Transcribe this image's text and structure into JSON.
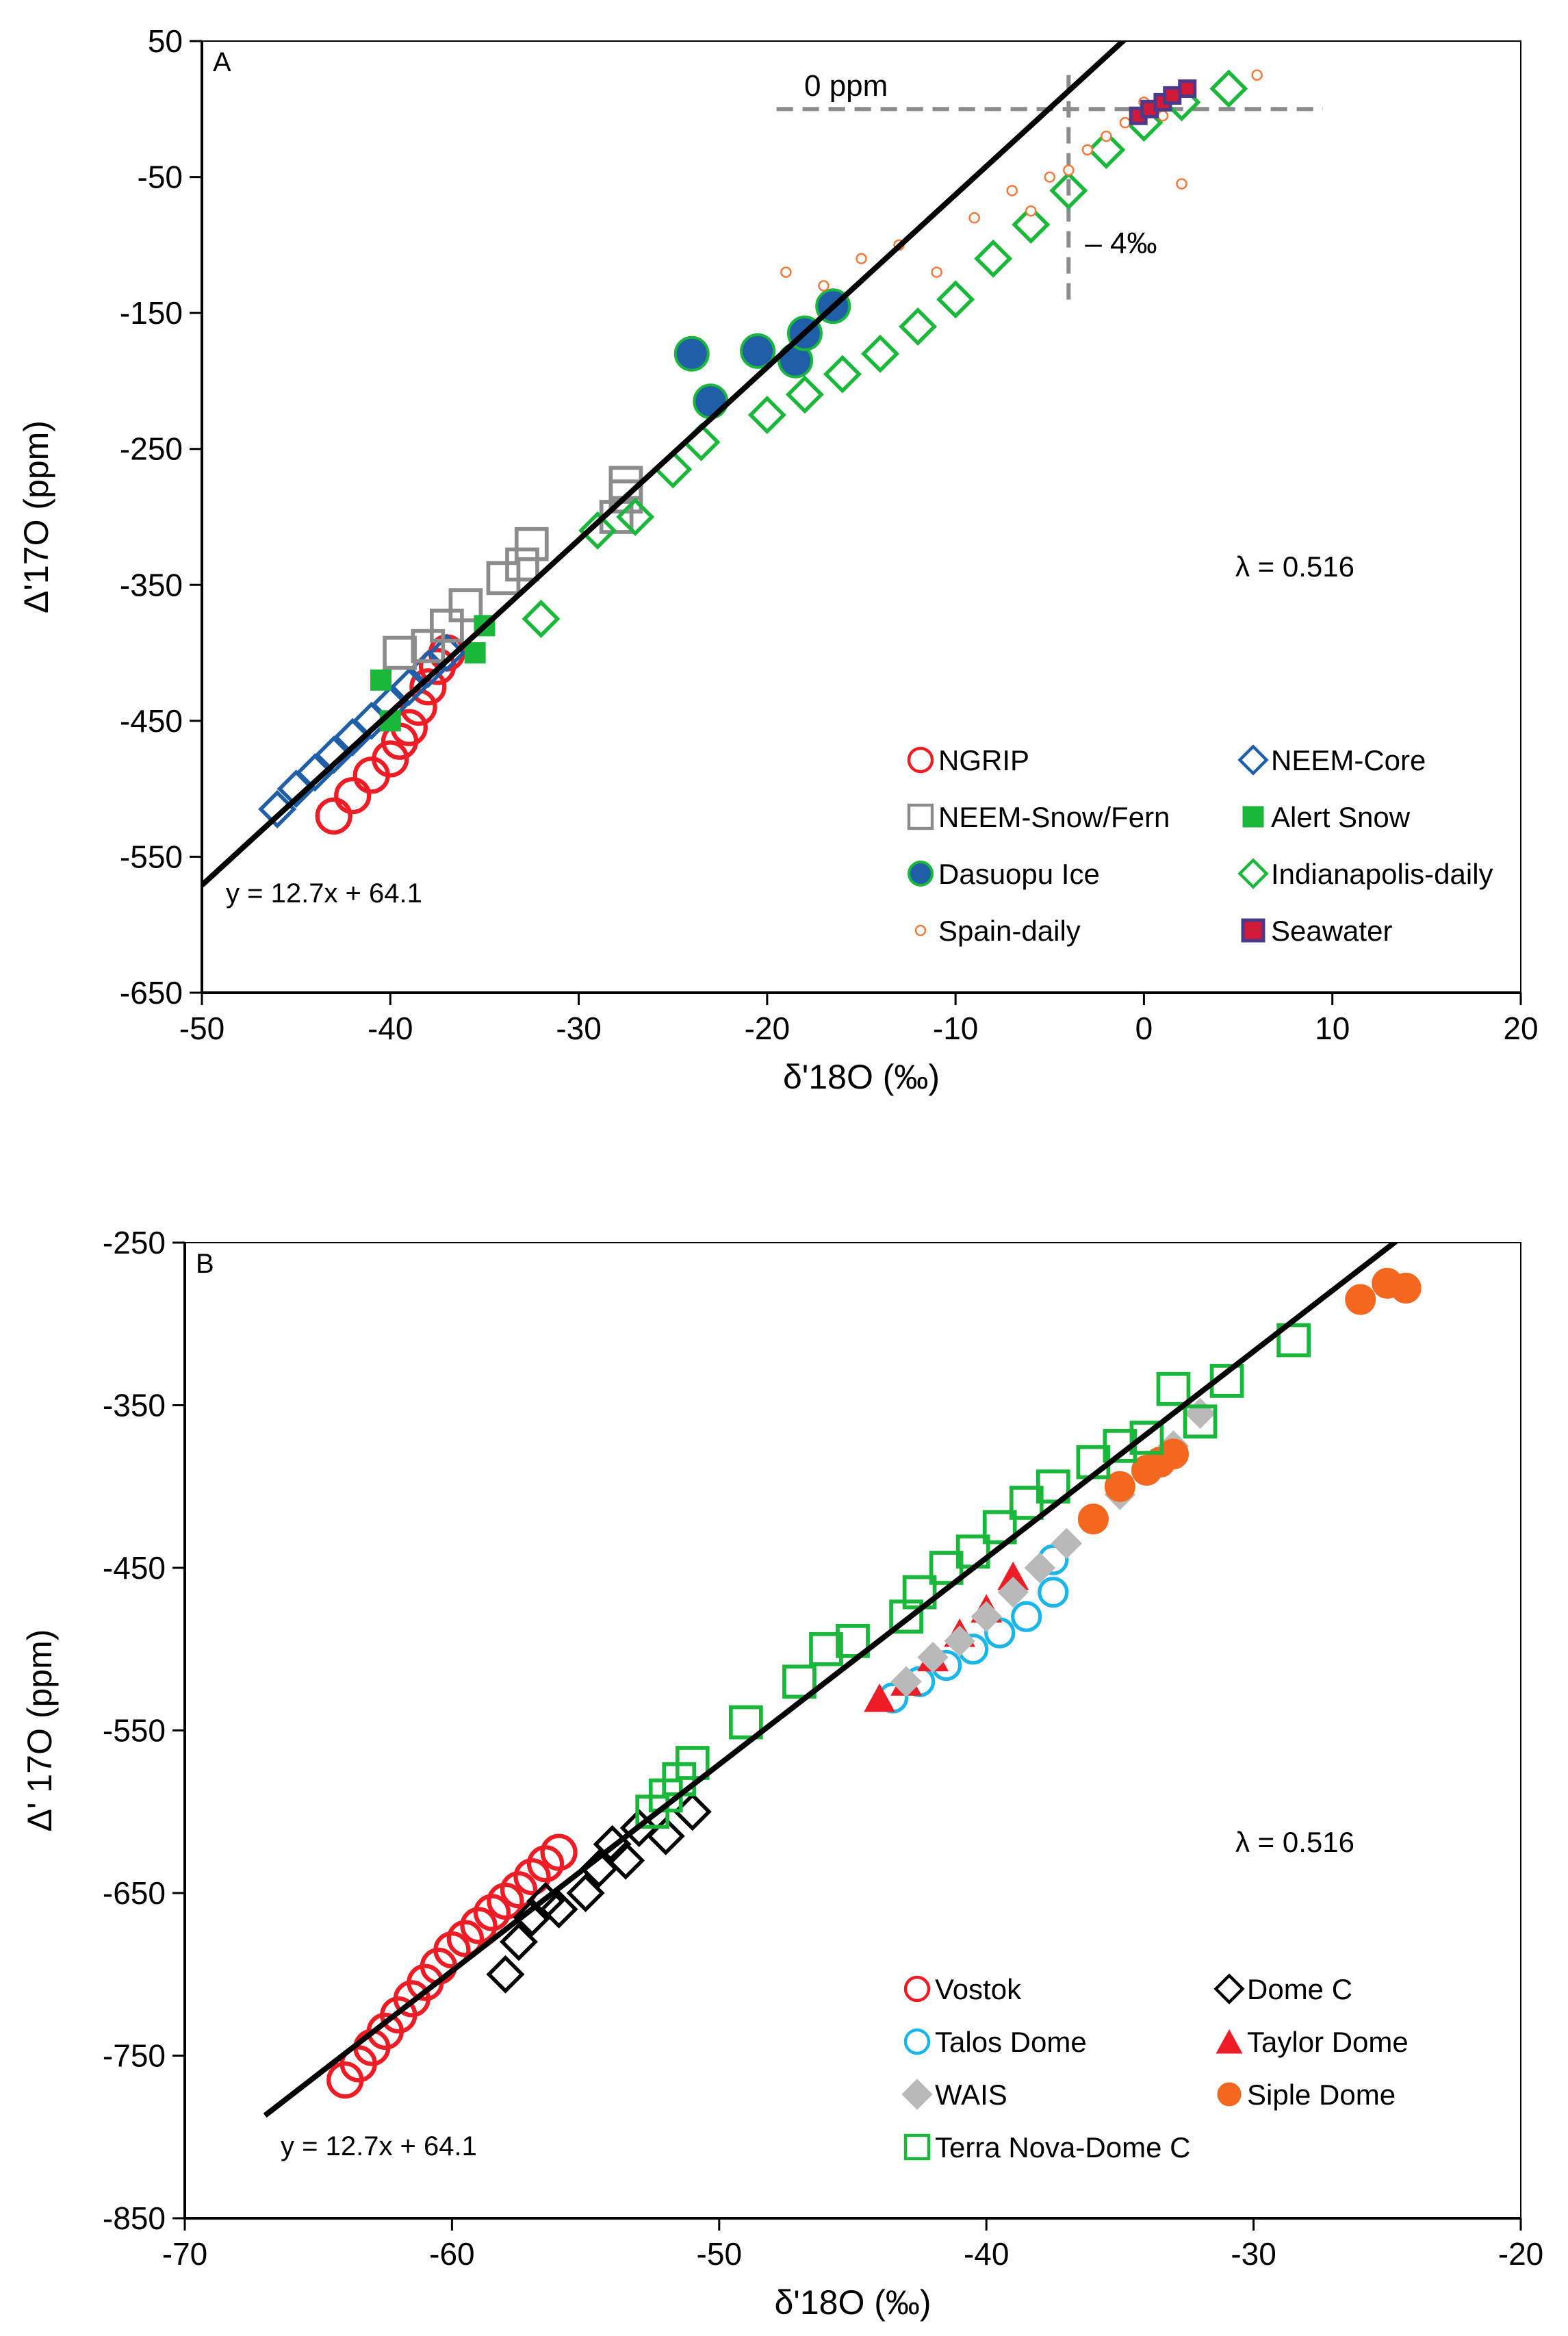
{
  "colors": {
    "red": "#ee1c25",
    "blue": "#1f5fa8",
    "gray": "#8c8c8c",
    "green": "#1ab83a",
    "orange": "#f47a3c",
    "purple": "#4b3a8c",
    "crimson": "#d11a3a",
    "cyan": "#1ab6ea",
    "black": "#000000",
    "lightgray": "#b9b9b9",
    "siple": "#f4671f"
  },
  "chart_data": [
    {
      "type": "scatter",
      "panel": "A",
      "xlabel": "δ'18O (‰)",
      "ylabel": "Δ'17O (ppm)",
      "xlim": [
        -50,
        20
      ],
      "ylim": [
        -650,
        50
      ],
      "xticks": [
        -50,
        -40,
        -30,
        -20,
        -10,
        0,
        10,
        20
      ],
      "yticks": [
        50,
        -50,
        -150,
        -250,
        -350,
        -450,
        -550,
        -650
      ],
      "lambda_label": "λ = 0.516",
      "fit": {
        "label": "y = 12.7x + 64.1",
        "slope": 12.7,
        "intercept": 64.1,
        "x_range": [
          -50,
          10.6
        ]
      },
      "annotations": {
        "zero_ppm": "0 ppm",
        "minus4": "– 4‰",
        "ref_y": 0,
        "ref_x": -4,
        "hline_x": [
          -19.5,
          9.5
        ],
        "vline_y": [
          -145,
          25
        ]
      },
      "series": [
        {
          "name": "NGRIP",
          "marker": "circle-open",
          "color": "red",
          "x": [
            -43,
            -42,
            -41,
            -40,
            -39.5,
            -39,
            -38.5,
            -38,
            -37.5,
            -37
          ],
          "y": [
            -520,
            -505,
            -490,
            -478,
            -465,
            -455,
            -440,
            -425,
            -410,
            -400
          ]
        },
        {
          "name": "NEEM-Core",
          "marker": "diamond-open",
          "color": "blue",
          "x": [
            -46,
            -45,
            -44,
            -43,
            -42,
            -41,
            -40,
            -39,
            -38,
            -37
          ],
          "y": [
            -515,
            -500,
            -488,
            -475,
            -462,
            -450,
            -438,
            -425,
            -412,
            -400
          ]
        },
        {
          "name": "NEEM-Snow/Fern",
          "marker": "square-open",
          "color": "gray",
          "x": [
            -39.5,
            -38,
            -37,
            -36,
            -34,
            -33,
            -32.5,
            -28,
            -27.5,
            -27.5
          ],
          "y": [
            -400,
            -395,
            -380,
            -365,
            -345,
            -335,
            -320,
            -300,
            -285,
            -275
          ]
        },
        {
          "name": "Alert Snow",
          "marker": "square-filled",
          "color": "green",
          "x": [
            -40.5,
            -40,
            -35.5,
            -35
          ],
          "y": [
            -420,
            -450,
            -400,
            -380
          ]
        },
        {
          "name": "Dasuopu Ice",
          "marker": "circle-filled",
          "color": "blue",
          "x": [
            -24,
            -23,
            -20.5,
            -18.5,
            -18,
            -16.5
          ],
          "y": [
            -180,
            -215,
            -178,
            -185,
            -165,
            -145
          ]
        },
        {
          "name": "Indianapolis-daily",
          "marker": "diamond-open",
          "color": "green",
          "x": [
            -32,
            -29,
            -27,
            -25,
            -23.5,
            -20,
            -18,
            -16,
            -14,
            -12,
            -10,
            -8,
            -6,
            -4,
            -2,
            0,
            2,
            4.5
          ],
          "y": [
            -375,
            -310,
            -300,
            -265,
            -245,
            -225,
            -210,
            -195,
            -180,
            -160,
            -140,
            -110,
            -85,
            -60,
            -30,
            -10,
            5,
            15
          ]
        },
        {
          "name": "Spain-daily",
          "marker": "circle-small",
          "color": "orange",
          "x": [
            -19,
            -17,
            -15,
            -13,
            -11,
            -9,
            -7,
            -6,
            -5,
            -4,
            -3,
            -2,
            -1,
            0,
            1,
            2,
            6
          ],
          "y": [
            -120,
            -130,
            -110,
            -100,
            -120,
            -80,
            -60,
            -75,
            -50,
            -45,
            -30,
            -20,
            -10,
            5,
            -5,
            -55,
            25
          ]
        },
        {
          "name": "Seawater",
          "marker": "square-filled",
          "color": "crimson",
          "x": [
            -0.3,
            0.3,
            1,
            1.5,
            2.3
          ],
          "y": [
            -5,
            0,
            5,
            10,
            15
          ]
        }
      ]
    },
    {
      "type": "scatter",
      "panel": "B",
      "xlabel": "δ'18O (‰)",
      "ylabel": "Δ' 17O (ppm)",
      "xlim": [
        -70,
        -20
      ],
      "ylim": [
        -850,
        -250
      ],
      "xticks": [
        -70,
        -60,
        -50,
        -40,
        -30,
        -20
      ],
      "yticks": [
        -250,
        -350,
        -450,
        -550,
        -650,
        -750,
        -850
      ],
      "lambda_label": "λ = 0.516",
      "fit": {
        "label": "y = 12.7x + 64.1",
        "slope": 12.7,
        "intercept": 64.1,
        "x_range": [
          -67,
          -24.5
        ]
      },
      "series": [
        {
          "name": "Vostok",
          "marker": "circle-open",
          "color": "red",
          "x": [
            -64,
            -63.5,
            -63,
            -62.5,
            -62,
            -61.5,
            -61,
            -60.5,
            -60,
            -59.5,
            -59,
            -58.5,
            -58,
            -57.5,
            -57,
            -56.5,
            -56
          ],
          "y": [
            -765,
            -755,
            -745,
            -735,
            -725,
            -715,
            -705,
            -695,
            -685,
            -678,
            -670,
            -662,
            -655,
            -648,
            -640,
            -632,
            -625
          ]
        },
        {
          "name": "Dome C",
          "marker": "diamond-open",
          "color": "black",
          "x": [
            -58,
            -57.5,
            -57,
            -56.5,
            -56,
            -55,
            -54.5,
            -54,
            -53.5,
            -53,
            -52,
            -51
          ],
          "y": [
            -700,
            -680,
            -665,
            -655,
            -660,
            -650,
            -635,
            -620,
            -630,
            -610,
            -615,
            -600
          ]
        },
        {
          "name": "Talos Dome",
          "marker": "circle-open",
          "color": "cyan",
          "x": [
            -43.5,
            -42.5,
            -41.5,
            -40.5,
            -39.5,
            -38.5,
            -37.5,
            -37.5
          ],
          "y": [
            -530,
            -520,
            -510,
            -500,
            -490,
            -480,
            -465,
            -445
          ]
        },
        {
          "name": "Taylor Dome",
          "marker": "triangle-filled",
          "color": "red",
          "x": [
            -44,
            -43,
            -42,
            -41,
            -40,
            -39
          ],
          "y": [
            -530,
            -520,
            -505,
            -490,
            -475,
            -455
          ]
        },
        {
          "name": "WAIS",
          "marker": "diamond-filled",
          "color": "lightgray",
          "x": [
            -43,
            -42,
            -41,
            -40,
            -39,
            -38,
            -37,
            -36,
            -35,
            -34,
            -33,
            -32
          ],
          "y": [
            -520,
            -505,
            -495,
            -480,
            -465,
            -450,
            -435,
            -420,
            -405,
            -390,
            -375,
            -355
          ]
        },
        {
          "name": "Siple Dome",
          "marker": "circle-filled",
          "color": "siple",
          "x": [
            -36,
            -35,
            -34,
            -33.5,
            -33,
            -26,
            -25,
            -24.3
          ],
          "y": [
            -420,
            -400,
            -390,
            -385,
            -380,
            -285,
            -275,
            -278
          ]
        },
        {
          "name": "Terra Nova-Dome C",
          "marker": "square-open",
          "color": "green",
          "x": [
            -52.5,
            -52,
            -51.5,
            -51,
            -49,
            -47,
            -46,
            -45,
            -43,
            -42.5,
            -41.5,
            -40.5,
            -39.5,
            -38.5,
            -37.5,
            -36,
            -35,
            -34,
            -33,
            -32,
            -31,
            -28.5
          ],
          "y": [
            -600,
            -590,
            -580,
            -570,
            -545,
            -520,
            -500,
            -495,
            -480,
            -465,
            -450,
            -440,
            -425,
            -410,
            -400,
            -385,
            -375,
            -370,
            -340,
            -360,
            -335,
            -310
          ]
        }
      ]
    }
  ]
}
